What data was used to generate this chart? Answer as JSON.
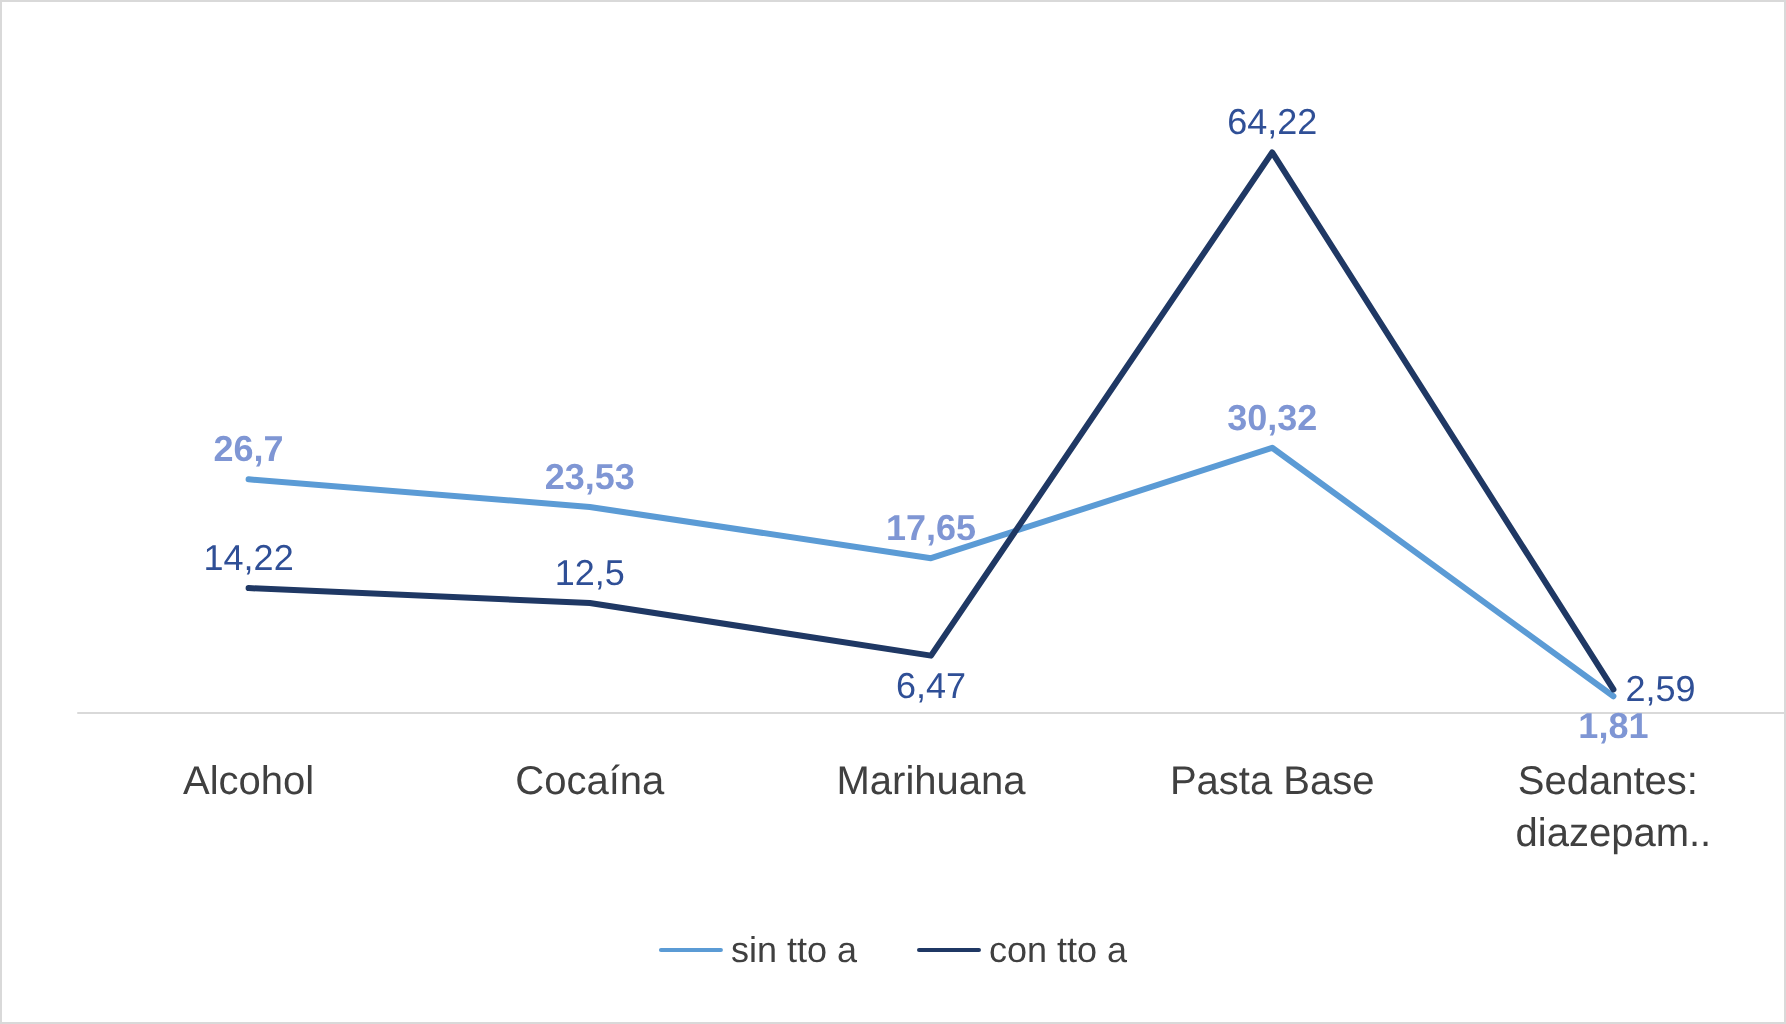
{
  "chart_data": {
    "type": "line",
    "categories": [
      "Alcohol",
      "Cocaína",
      "Marihuana",
      "Pasta Base",
      "Sedantes: diazepam.."
    ],
    "series": [
      {
        "name": "sin tto a",
        "color": "#5b9bd5",
        "values": [
          26.7,
          23.53,
          17.65,
          30.32,
          1.81
        ],
        "value_labels": [
          "26,7",
          "23,53",
          "17,65",
          "30,32",
          "1,81"
        ]
      },
      {
        "name": "con tto a",
        "color": "#1f3864",
        "values": [
          14.22,
          12.5,
          6.47,
          64.22,
          2.59
        ],
        "value_labels": [
          "14,22",
          "12,5",
          "6,47",
          "64,22",
          "2,59"
        ]
      }
    ],
    "grid": false,
    "legend": "bottom",
    "marker": "none",
    "line_style": "solid"
  }
}
